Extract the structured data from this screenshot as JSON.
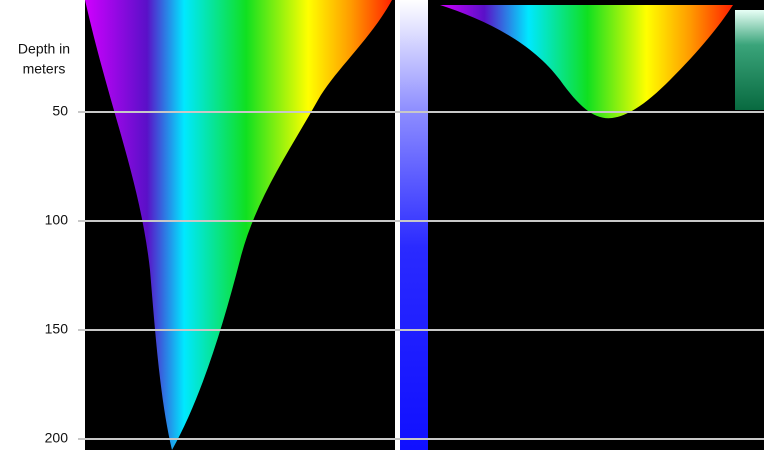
{
  "axis": {
    "label_lines": [
      "Depth in",
      "meters"
    ],
    "ticks": [
      50,
      100,
      150,
      200
    ]
  }
}
